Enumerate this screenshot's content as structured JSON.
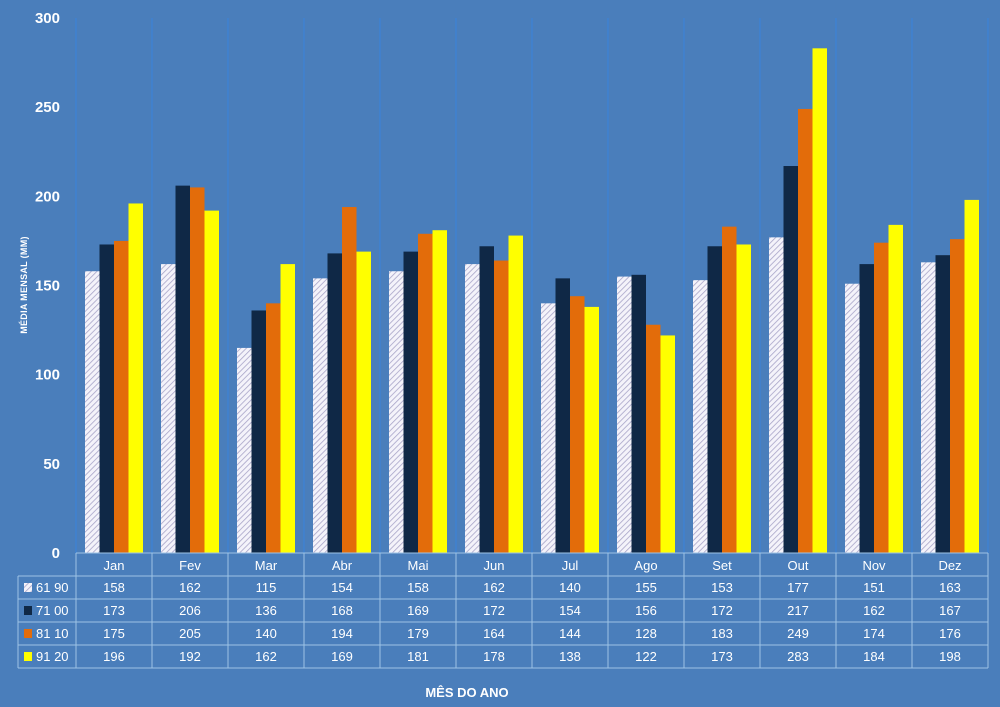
{
  "chart_data": {
    "type": "bar",
    "ylabel": "MÉDIA MENSAL (MM)",
    "xlabel": "MÊS DO ANO",
    "ylim": [
      0,
      300
    ],
    "yticks": [
      0,
      50,
      100,
      150,
      200,
      250,
      300
    ],
    "grid": "vertical",
    "legend": "data-table",
    "categories": [
      "Jan",
      "Fev",
      "Mar",
      "Abr",
      "Mai",
      "Jun",
      "Jul",
      "Ago",
      "Set",
      "Out",
      "Nov",
      "Dez"
    ],
    "series": [
      {
        "name": "61 90",
        "color": "#ecebf4",
        "pattern": "hatched",
        "values": [
          158,
          162,
          115,
          154,
          158,
          162,
          140,
          155,
          153,
          177,
          151,
          163
        ]
      },
      {
        "name": "71 00",
        "color": "#0f2846",
        "values": [
          173,
          206,
          136,
          168,
          169,
          172,
          154,
          156,
          172,
          217,
          162,
          167
        ]
      },
      {
        "name": "81 10",
        "color": "#e36c0a",
        "values": [
          175,
          205,
          140,
          194,
          179,
          164,
          144,
          128,
          183,
          249,
          174,
          176
        ]
      },
      {
        "name": "91 20",
        "color": "#ffff00",
        "values": [
          196,
          192,
          162,
          169,
          181,
          178,
          138,
          122,
          173,
          283,
          184,
          198
        ]
      }
    ]
  }
}
